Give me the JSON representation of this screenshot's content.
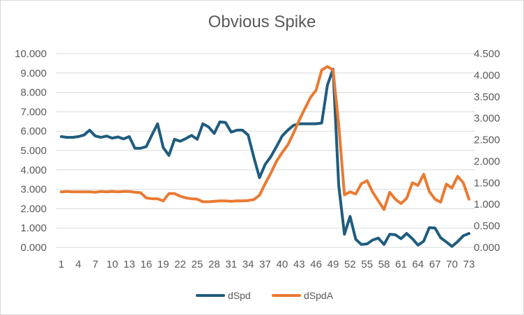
{
  "chart_data": {
    "type": "line",
    "title": "Obvious Spike",
    "xlabel": "",
    "ylabel": "",
    "y2label": "",
    "x": [
      1,
      2,
      3,
      4,
      5,
      6,
      7,
      8,
      9,
      10,
      11,
      12,
      13,
      14,
      15,
      16,
      17,
      18,
      19,
      20,
      21,
      22,
      23,
      24,
      25,
      26,
      27,
      28,
      29,
      30,
      31,
      32,
      33,
      34,
      35,
      36,
      37,
      38,
      39,
      40,
      41,
      42,
      43,
      44,
      45,
      46,
      47,
      48,
      49,
      50,
      51,
      52,
      53,
      54,
      55,
      56,
      57,
      58,
      59,
      60,
      61,
      62,
      63,
      64,
      65,
      66,
      67,
      68,
      69,
      70,
      71,
      72,
      73
    ],
    "x_tick_labels": [
      "1",
      "4",
      "7",
      "10",
      "13",
      "16",
      "19",
      "22",
      "25",
      "28",
      "31",
      "34",
      "37",
      "40",
      "43",
      "46",
      "49",
      "52",
      "55",
      "58",
      "61",
      "64",
      "67",
      "70",
      "73"
    ],
    "ylim": [
      0,
      10
    ],
    "y2lim": [
      0,
      4.5
    ],
    "y_tick_labels": [
      "0.000",
      "1.000",
      "2.000",
      "3.000",
      "4.000",
      "5.000",
      "6.000",
      "7.000",
      "8.000",
      "9.000",
      "10.000"
    ],
    "y2_tick_labels": [
      "0.000",
      "0.500",
      "1.000",
      "1.500",
      "2.000",
      "2.500",
      "3.000",
      "3.500",
      "4.000",
      "4.500"
    ],
    "grid": true,
    "legend": "bottom",
    "series": [
      {
        "name": "dSpd",
        "axis": "left",
        "color": "#1f5c7f",
        "values": [
          5.72,
          5.68,
          5.68,
          5.72,
          5.8,
          6.05,
          5.75,
          5.68,
          5.75,
          5.64,
          5.7,
          5.6,
          5.72,
          5.12,
          5.12,
          5.2,
          5.8,
          6.38,
          5.15,
          4.75,
          5.58,
          5.48,
          5.62,
          5.78,
          5.58,
          6.38,
          6.22,
          5.88,
          6.48,
          6.45,
          5.95,
          6.05,
          6.05,
          5.8,
          4.65,
          3.6,
          4.28,
          4.68,
          5.2,
          5.75,
          6.05,
          6.3,
          6.38,
          6.38,
          6.38,
          6.38,
          6.42,
          8.38,
          9.2,
          3.2,
          0.68,
          1.6,
          0.42,
          0.15,
          0.18,
          0.38,
          0.48,
          0.15,
          0.68,
          0.65,
          0.45,
          0.72,
          0.45,
          0.12,
          0.32,
          1.02,
          1.0,
          0.5,
          0.28,
          0.05,
          0.3,
          0.6,
          0.72
        ]
      },
      {
        "name": "dSpdA",
        "axis": "right",
        "color": "#e97a32",
        "values": [
          1.29,
          1.3,
          1.29,
          1.29,
          1.29,
          1.29,
          1.28,
          1.3,
          1.29,
          1.3,
          1.29,
          1.3,
          1.3,
          1.28,
          1.27,
          1.15,
          1.13,
          1.13,
          1.08,
          1.25,
          1.25,
          1.19,
          1.15,
          1.13,
          1.12,
          1.06,
          1.06,
          1.07,
          1.08,
          1.08,
          1.07,
          1.08,
          1.08,
          1.09,
          1.11,
          1.21,
          1.48,
          1.72,
          2.0,
          2.2,
          2.38,
          2.65,
          2.95,
          3.22,
          3.48,
          3.65,
          4.12,
          4.2,
          4.12,
          2.85,
          1.22,
          1.29,
          1.24,
          1.48,
          1.55,
          1.28,
          1.08,
          0.88,
          1.28,
          1.12,
          1.02,
          1.14,
          1.5,
          1.44,
          1.7,
          1.3,
          1.12,
          1.05,
          1.47,
          1.38,
          1.65,
          1.5,
          1.12
        ]
      }
    ]
  }
}
